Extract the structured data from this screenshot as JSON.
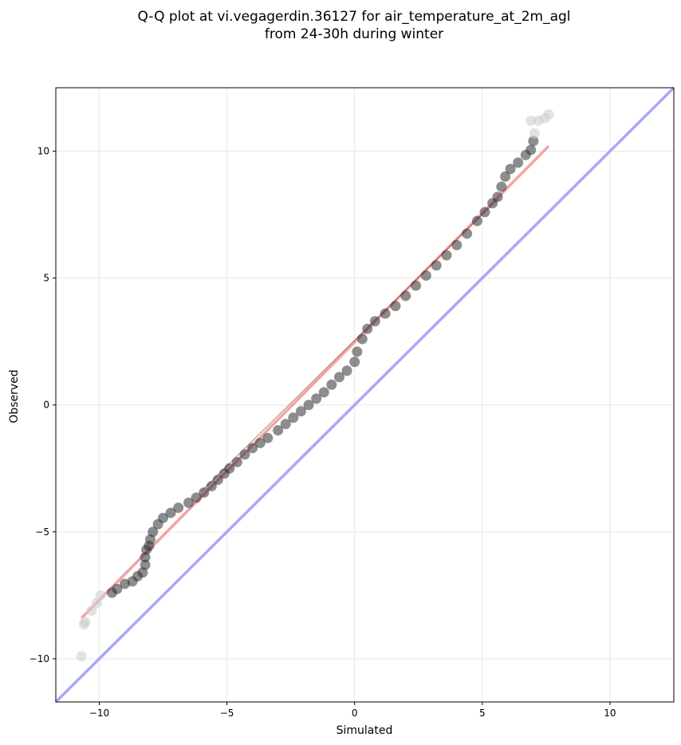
{
  "chart_data": {
    "type": "scatter",
    "title": [
      "Q-Q plot at vi.vegagerdin.36127 for air_temperature_at_2m_agl",
      "from 24-30h during winter"
    ],
    "xlabel": "Simulated",
    "ylabel": "Observed",
    "xlim": [
      -11.7,
      12.5
    ],
    "ylim": [
      -11.7,
      12.5
    ],
    "xticks": [
      -10,
      -5,
      0,
      5,
      10
    ],
    "yticks": [
      -10,
      -5,
      0,
      5,
      10
    ],
    "xtick_labels": [
      "−10",
      "−5",
      "0",
      "5",
      "10"
    ],
    "ytick_labels": [
      "−10",
      "−5",
      "0",
      "5",
      "10"
    ],
    "grid": true,
    "legend": null,
    "colors": {
      "points": "#2f2f2f",
      "fit_line": "#f4a3a3",
      "identity_line": "#a6aaf4",
      "tail_points": "#cfcfcf"
    },
    "quantile_points": [
      [
        -10.7,
        -9.9
      ],
      [
        -10.6,
        -8.65
      ],
      [
        -10.55,
        -8.55
      ],
      [
        -10.3,
        -8.1
      ],
      [
        -10.1,
        -7.8
      ],
      [
        -9.95,
        -7.5
      ],
      [
        -9.5,
        -7.4
      ],
      [
        -9.3,
        -7.25
      ],
      [
        -9.0,
        -7.05
      ],
      [
        -8.7,
        -6.95
      ],
      [
        -8.5,
        -6.75
      ],
      [
        -8.3,
        -6.6
      ],
      [
        -8.2,
        -6.3
      ],
      [
        -8.2,
        -6.0
      ],
      [
        -8.15,
        -5.7
      ],
      [
        -8.05,
        -5.55
      ],
      [
        -8.0,
        -5.3
      ],
      [
        -7.9,
        -5.0
      ],
      [
        -7.7,
        -4.7
      ],
      [
        -7.5,
        -4.45
      ],
      [
        -7.2,
        -4.25
      ],
      [
        -6.9,
        -4.05
      ],
      [
        -6.5,
        -3.85
      ],
      [
        -6.2,
        -3.65
      ],
      [
        -5.9,
        -3.45
      ],
      [
        -5.6,
        -3.2
      ],
      [
        -5.35,
        -2.95
      ],
      [
        -5.1,
        -2.7
      ],
      [
        -4.9,
        -2.5
      ],
      [
        -4.6,
        -2.25
      ],
      [
        -4.3,
        -1.95
      ],
      [
        -4.0,
        -1.7
      ],
      [
        -3.7,
        -1.5
      ],
      [
        -3.4,
        -1.3
      ],
      [
        -3.0,
        -1.0
      ],
      [
        -2.7,
        -0.75
      ],
      [
        -2.4,
        -0.5
      ],
      [
        -2.1,
        -0.25
      ],
      [
        -1.8,
        0.0
      ],
      [
        -1.5,
        0.25
      ],
      [
        -1.2,
        0.5
      ],
      [
        -0.9,
        0.8
      ],
      [
        -0.6,
        1.1
      ],
      [
        -0.3,
        1.35
      ],
      [
        0.0,
        1.7
      ],
      [
        0.1,
        2.1
      ],
      [
        0.3,
        2.6
      ],
      [
        0.5,
        3.0
      ],
      [
        0.8,
        3.3
      ],
      [
        1.2,
        3.6
      ],
      [
        1.6,
        3.9
      ],
      [
        2.0,
        4.3
      ],
      [
        2.4,
        4.7
      ],
      [
        2.8,
        5.1
      ],
      [
        3.2,
        5.5
      ],
      [
        3.6,
        5.9
      ],
      [
        4.0,
        6.3
      ],
      [
        4.4,
        6.75
      ],
      [
        4.8,
        7.25
      ],
      [
        5.1,
        7.6
      ],
      [
        5.4,
        7.95
      ],
      [
        5.6,
        8.2
      ],
      [
        5.75,
        8.6
      ],
      [
        5.9,
        9.0
      ],
      [
        6.1,
        9.3
      ],
      [
        6.4,
        9.55
      ],
      [
        6.7,
        9.85
      ],
      [
        6.9,
        10.05
      ],
      [
        7.0,
        10.4
      ],
      [
        7.05,
        10.7
      ],
      [
        6.9,
        11.2
      ],
      [
        7.2,
        11.2
      ],
      [
        7.45,
        11.3
      ],
      [
        7.6,
        11.45
      ]
    ],
    "fit_line": [
      [
        -10.7,
        -8.4
      ],
      [
        7.6,
        10.2
      ]
    ],
    "identity_line": [
      [
        -11.7,
        -11.7
      ],
      [
        12.5,
        12.5
      ]
    ]
  }
}
